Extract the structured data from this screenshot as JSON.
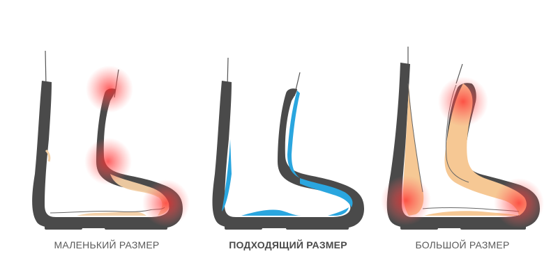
{
  "captions": {
    "small": "МАЛЕНЬКИЙ РАЗМЕР",
    "fitting": "ПОДХОДЯЩИЙ РАЗМЕР",
    "large": "БОЛЬШОЙ РАЗМЕР"
  },
  "colors": {
    "boot": "#4a4a4a",
    "foot_outline": "#555555",
    "gap_small": "#f3cfa4",
    "gap_fitting": "#2aa6df",
    "gap_large": "#f6c894",
    "pressure": "#ff3c3c"
  }
}
